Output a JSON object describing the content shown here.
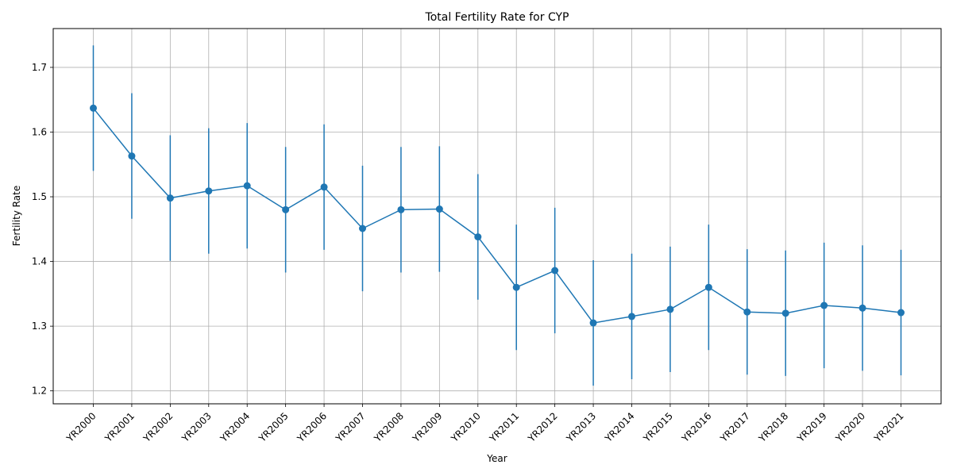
{
  "chart_data": {
    "type": "line",
    "title": "Total Fertility Rate for CYP",
    "xlabel": "Year",
    "ylabel": "Fertility Rate",
    "ylim": [
      1.18,
      1.76
    ],
    "yticks": [
      1.2,
      1.3,
      1.4,
      1.5,
      1.6,
      1.7
    ],
    "ytick_labels": [
      "1.2",
      "1.3",
      "1.4",
      "1.5",
      "1.6",
      "1.7"
    ],
    "grid": true,
    "error_bars": true,
    "color": "#1f77b4",
    "categories": [
      "YR2000",
      "YR2001",
      "YR2002",
      "YR2003",
      "YR2004",
      "YR2005",
      "YR2006",
      "YR2007",
      "YR2008",
      "YR2009",
      "YR2010",
      "YR2011",
      "YR2012",
      "YR2013",
      "YR2014",
      "YR2015",
      "YR2016",
      "YR2017",
      "YR2018",
      "YR2019",
      "YR2020",
      "YR2021"
    ],
    "values": [
      1.637,
      1.563,
      1.498,
      1.509,
      1.517,
      1.48,
      1.515,
      1.451,
      1.48,
      1.481,
      1.438,
      1.36,
      1.386,
      1.305,
      1.315,
      1.326,
      1.36,
      1.322,
      1.32,
      1.332,
      1.328,
      1.321
    ],
    "error": 0.097
  }
}
